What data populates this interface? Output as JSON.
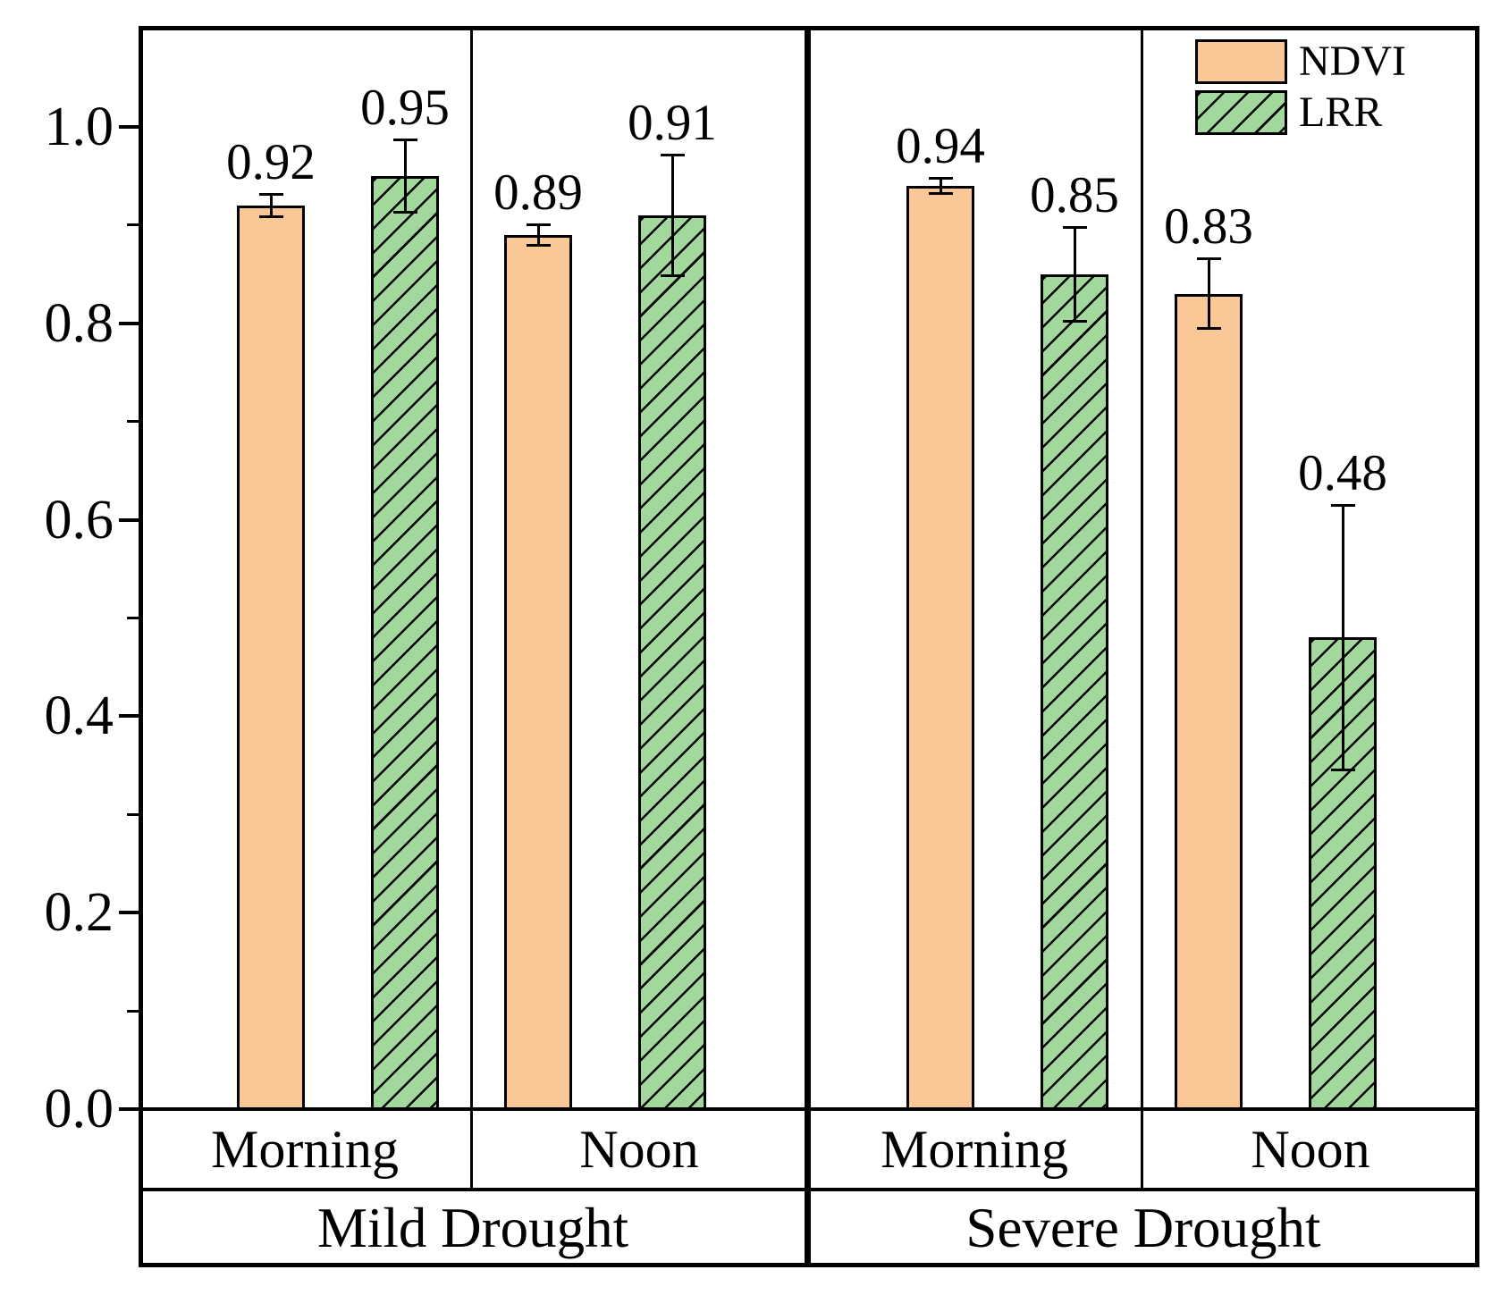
{
  "chart_data": {
    "type": "bar",
    "title": "",
    "xlabel": "",
    "ylabel": "",
    "ylim": [
      0,
      1.1
    ],
    "grid": false,
    "y_axis": {
      "major_ticks": [
        {
          "value": 0.0,
          "label": "0.0"
        },
        {
          "value": 0.2,
          "label": "0.2"
        },
        {
          "value": 0.4,
          "label": "0.4"
        },
        {
          "value": 0.6,
          "label": "0.6"
        },
        {
          "value": 0.8,
          "label": "0.8"
        },
        {
          "value": 1.0,
          "label": "1.0"
        }
      ],
      "minor_tick_values": [
        0.1,
        0.3,
        0.5,
        0.7,
        0.9
      ]
    },
    "series": [
      {
        "name": "NDVI",
        "fill": "#FAC897",
        "pattern": "solid",
        "outline": "#000000"
      },
      {
        "name": "LRR",
        "fill": "#A3D89C",
        "pattern": "diagonal-hatch",
        "outline": "#000000"
      }
    ],
    "legend": {
      "position": "top-right-inside",
      "entries": [
        {
          "label": "NDVI"
        },
        {
          "label": "LRR"
        }
      ]
    },
    "groups": [
      {
        "label": "Mild Drought",
        "categories": [
          {
            "label": "Morning",
            "bars": [
              {
                "series": "NDVI",
                "value": 0.92,
                "value_label": "0.92",
                "error": 0.012
              },
              {
                "series": "LRR",
                "value": 0.95,
                "value_label": "0.95",
                "error": 0.037
              }
            ]
          },
          {
            "label": "Noon",
            "bars": [
              {
                "series": "NDVI",
                "value": 0.89,
                "value_label": "0.89",
                "error": 0.011
              },
              {
                "series": "LRR",
                "value": 0.91,
                "value_label": "0.91",
                "error": 0.062
              }
            ]
          }
        ]
      },
      {
        "label": "Severe Drought",
        "categories": [
          {
            "label": "Morning",
            "bars": [
              {
                "series": "NDVI",
                "value": 0.94,
                "value_label": "0.94",
                "error": 0.008
              },
              {
                "series": "LRR",
                "value": 0.85,
                "value_label": "0.85",
                "error": 0.048
              }
            ]
          },
          {
            "label": "Noon",
            "bars": [
              {
                "series": "NDVI",
                "value": 0.83,
                "value_label": "0.83",
                "error": 0.036
              },
              {
                "series": "LRR",
                "value": 0.48,
                "value_label": "0.48",
                "error": 0.135
              }
            ]
          }
        ]
      }
    ]
  }
}
